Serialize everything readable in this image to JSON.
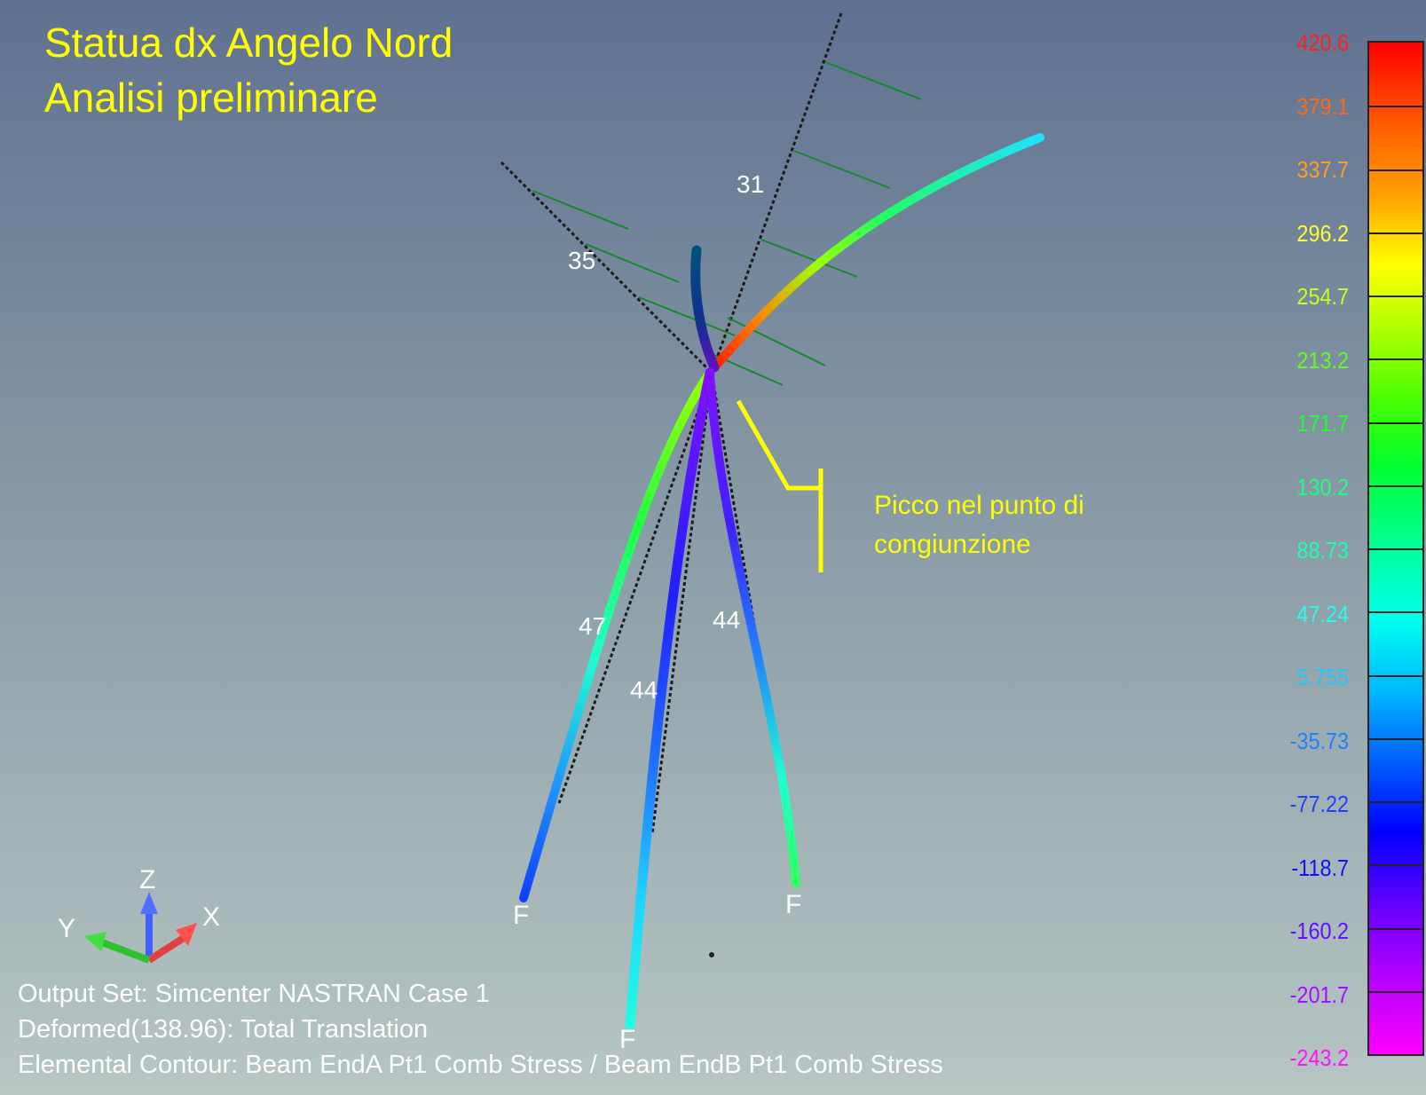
{
  "title": {
    "line1": "Statua dx Angelo Nord",
    "line2": "Analisi preliminare"
  },
  "annotation": {
    "line1": "Picco nel punto di",
    "line2": "congiunzione"
  },
  "member_labels": {
    "upper_right": "31",
    "upper_left": "35",
    "left": "47",
    "center": "44",
    "right": "44"
  },
  "fixity_label": "F",
  "axes": {
    "x": "X",
    "y": "Y",
    "z": "Z"
  },
  "footer": {
    "line1": "Output Set: Simcenter NASTRAN Case 1",
    "line2": "Deformed(138.96): Total Translation",
    "line3": "Elemental Contour: Beam EndA Pt1 Comb Stress / Beam EndB Pt1 Comb Stress"
  },
  "legend": {
    "values": [
      "420.6",
      "379.1",
      "337.7",
      "296.2",
      "254.7",
      "213.2",
      "171.7",
      "130.2",
      "88.73",
      "47.24",
      "5.755",
      "-35.73",
      "-77.22",
      "-118.7",
      "-160.2",
      "-201.7",
      "-243.2"
    ],
    "colors": [
      "#ff2020",
      "#ff6a10",
      "#ffa020",
      "#ffff30",
      "#c8ff20",
      "#60ff20",
      "#20ff30",
      "#20ff80",
      "#20ffb0",
      "#20ffee",
      "#20c8ff",
      "#2080ff",
      "#2040ff",
      "#1010ff",
      "#6010ff",
      "#a010ff",
      "#ff10ff"
    ]
  },
  "colors": {
    "title": "#ffff00",
    "annotation": "#ffff00"
  }
}
